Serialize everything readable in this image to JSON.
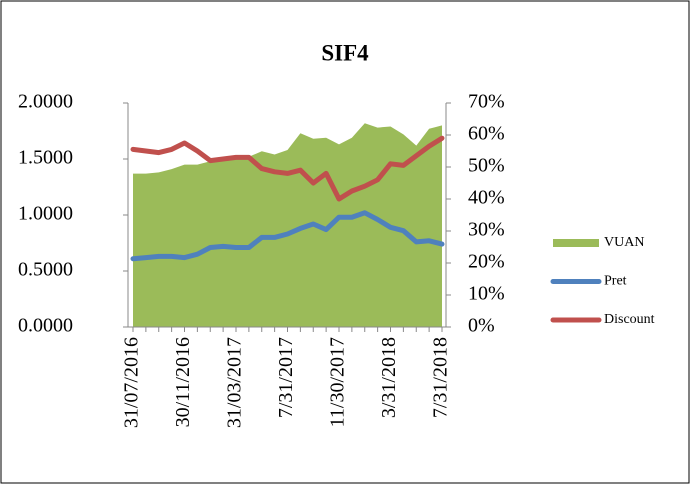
{
  "chart_data": {
    "type": "area-line",
    "title": "SIF4",
    "categories": [
      "31/07/2016",
      null,
      null,
      null,
      "30/11/2016",
      null,
      null,
      null,
      "31/03/2017",
      null,
      null,
      null,
      "7/31/2017",
      null,
      null,
      null,
      "11/30/2017",
      null,
      null,
      null,
      "3/31/2018",
      null,
      null,
      null,
      "7/31/2018"
    ],
    "series": [
      {
        "name": "VUAN",
        "color": "#9bbb59",
        "kind": "area",
        "axis": "y",
        "values": [
          1.37,
          1.37,
          1.38,
          1.41,
          1.45,
          1.45,
          1.48,
          1.5,
          1.51,
          1.52,
          1.57,
          1.54,
          1.58,
          1.73,
          1.68,
          1.69,
          1.63,
          1.69,
          1.82,
          1.78,
          1.79,
          1.72,
          1.62,
          1.77,
          1.8
        ]
      },
      {
        "name": "Pret",
        "color": "#4f81bd",
        "kind": "line",
        "axis": "y",
        "values": [
          0.61,
          0.62,
          0.63,
          0.63,
          0.62,
          0.65,
          0.71,
          0.72,
          0.71,
          0.71,
          0.8,
          0.8,
          0.83,
          0.88,
          0.92,
          0.87,
          0.98,
          0.98,
          1.02,
          0.96,
          0.89,
          0.86,
          0.76,
          0.77,
          0.74
        ]
      },
      {
        "name": "Discount",
        "color": "#c0504d",
        "kind": "line",
        "axis": "y2",
        "values": [
          55.5,
          55,
          54.5,
          55.5,
          57.5,
          55,
          52,
          52.5,
          53,
          53,
          49.5,
          48.5,
          48,
          49,
          45,
          48,
          40,
          42.5,
          44,
          46,
          51,
          50.5,
          53.5,
          56.5,
          59
        ]
      }
    ],
    "ylim": [
      0,
      2
    ],
    "yticks": [
      {
        "value": 0,
        "label": "0.0000"
      },
      {
        "value": 0.5,
        "label": "0.5000"
      },
      {
        "value": 1,
        "label": "1.0000"
      },
      {
        "value": 1.5,
        "label": "1.5000"
      },
      {
        "value": 2,
        "label": "2.0000"
      }
    ],
    "y2lim": [
      0,
      70
    ],
    "y2ticks": [
      {
        "value": 0,
        "label": "0%"
      },
      {
        "value": 10,
        "label": "10%"
      },
      {
        "value": 20,
        "label": "20%"
      },
      {
        "value": 30,
        "label": "30%"
      },
      {
        "value": 40,
        "label": "40%"
      },
      {
        "value": 50,
        "label": "50%"
      },
      {
        "value": 60,
        "label": "60%"
      },
      {
        "value": 70,
        "label": "70%"
      }
    ],
    "legend": "right"
  }
}
